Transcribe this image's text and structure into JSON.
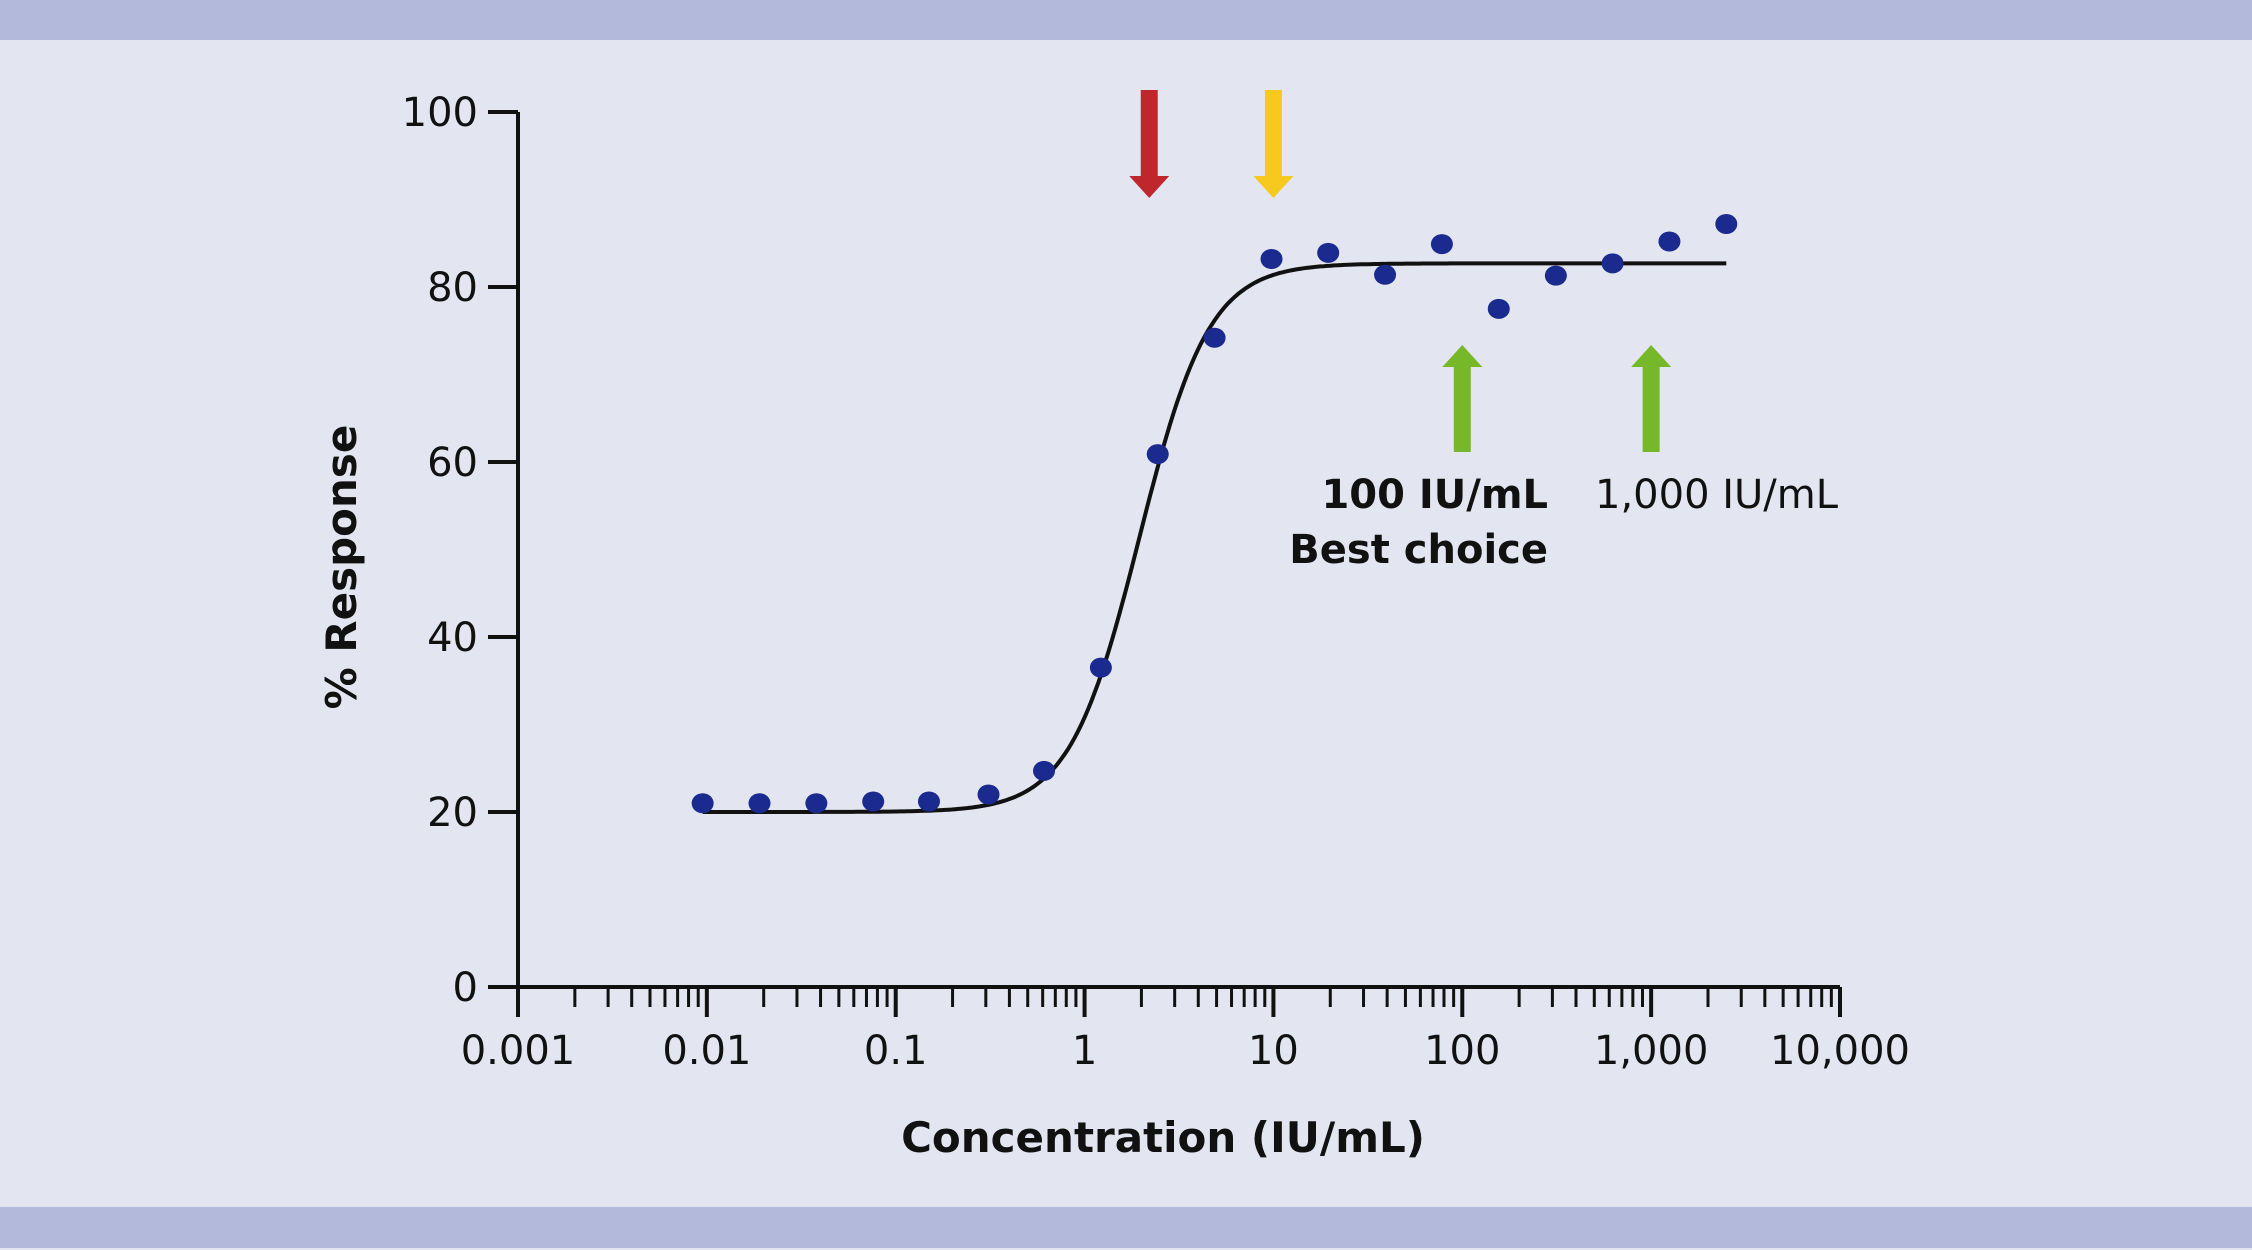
{
  "chart_data": {
    "type": "scatter",
    "title": "",
    "xlabel": "Concentration (IU/mL)",
    "ylabel": "% Response",
    "xscale": "log",
    "xlim": [
      0.001,
      10000
    ],
    "ylim": [
      0,
      100
    ],
    "x_ticks": [
      0.001,
      0.01,
      0.1,
      1,
      10,
      100,
      1000,
      10000
    ],
    "x_tick_labels": [
      "0.001",
      "0.01",
      "0.1",
      "1",
      "10",
      "100",
      "1,000",
      "10,000"
    ],
    "y_ticks": [
      0,
      20,
      40,
      60,
      80,
      100
    ],
    "y_tick_labels": [
      "0",
      "20",
      "40",
      "60",
      "80",
      "100"
    ],
    "grid": false,
    "points": {
      "x": [
        0.0095,
        0.019,
        0.038,
        0.076,
        0.15,
        0.31,
        0.61,
        1.22,
        2.44,
        4.88,
        9.77,
        19.5,
        39,
        78,
        156,
        313,
        625,
        1250,
        2500
      ],
      "y": [
        21.0,
        21.0,
        21.0,
        21.2,
        21.2,
        22.0,
        24.7,
        36.5,
        60.9,
        74.2,
        83.2,
        83.9,
        81.4,
        84.9,
        77.5,
        81.3,
        82.7,
        85.2,
        87.2
      ],
      "color": "#1b2a8f"
    },
    "fit_curve": {
      "type": "four-parameter logistic",
      "bottom": 20,
      "top": 82.7,
      "ec50": 1.95,
      "hill": 2.35,
      "x_range": [
        0.0095,
        2500
      ],
      "color": "#111111"
    },
    "annotations": [
      {
        "kind": "down-arrow",
        "x": 2.2,
        "color": "#c0272d"
      },
      {
        "kind": "down-arrow",
        "x": 10,
        "color": "#f7c81e"
      },
      {
        "kind": "up-arrow",
        "x": 100,
        "color": "#77b82a",
        "label": "100 IU/mL",
        "sublabel": "Best choice",
        "bold": true
      },
      {
        "kind": "up-arrow",
        "x": 1000,
        "color": "#77b82a",
        "label": "1,000 IU/mL",
        "bold": false
      }
    ]
  },
  "colors": {
    "background": "#e3e6f1",
    "band": "#b3b9db"
  }
}
